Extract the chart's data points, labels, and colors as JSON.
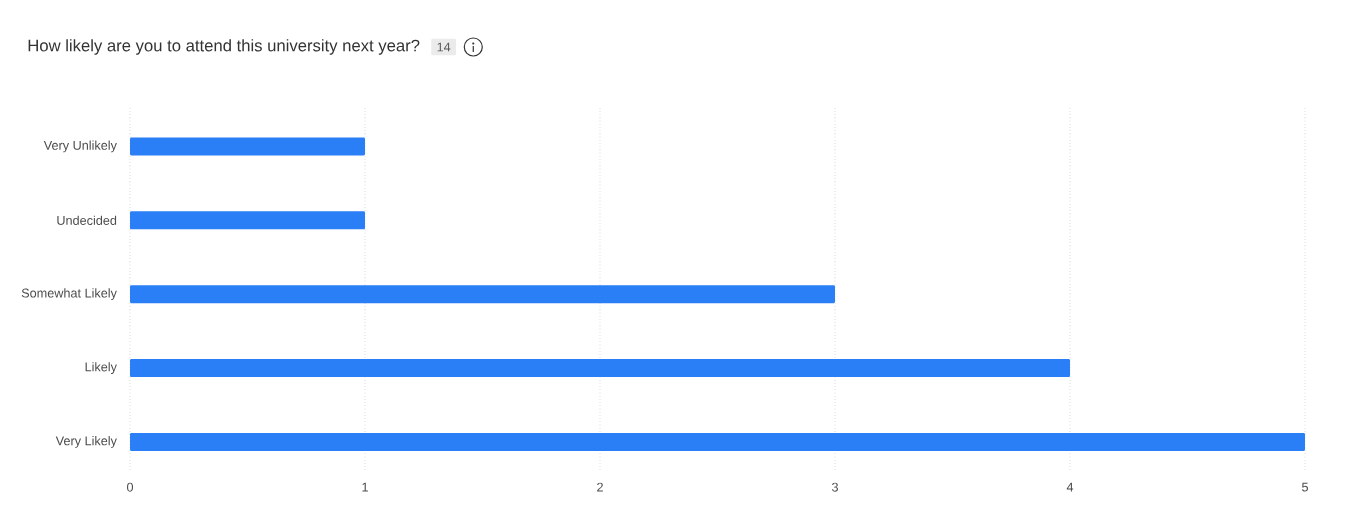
{
  "chart_data": {
    "type": "bar",
    "orientation": "horizontal",
    "title": "How likely are you to attend this university next year?",
    "annotations": [
      "14"
    ],
    "categories": [
      "Very Unlikely",
      "Undecided",
      "Somewhat Likely",
      "Likely",
      "Very Likely"
    ],
    "values": [
      1,
      1,
      3,
      4,
      5
    ],
    "color": "#2a7ef6",
    "xlim": [
      0,
      5
    ],
    "xticks": [
      0,
      1,
      2,
      3,
      4,
      5
    ],
    "grid": "x"
  }
}
